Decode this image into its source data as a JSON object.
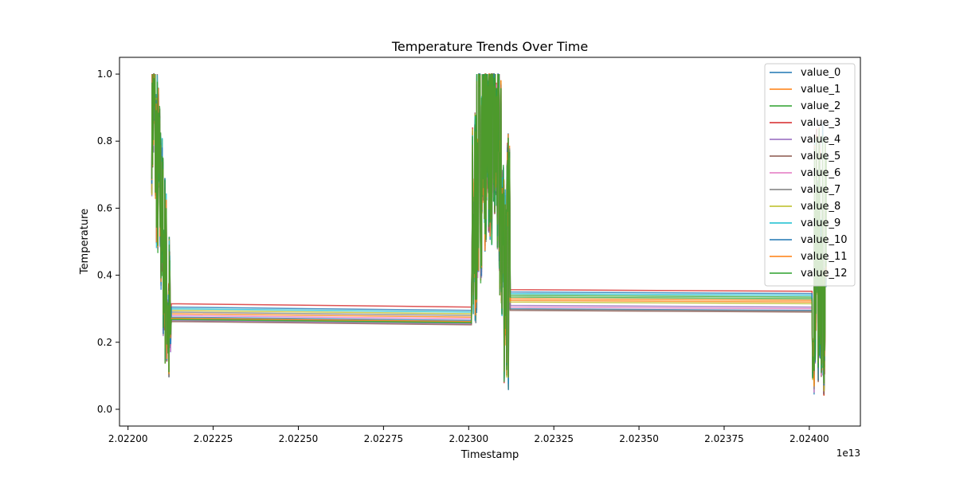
{
  "chart_data": {
    "type": "line",
    "title": "Temperature Trends Over Time",
    "xlabel": "Timestamp",
    "ylabel": "Temperature",
    "x_offset_label": "1e13",
    "xlim": [
      2.022175,
      2.02243
    ],
    "ylim": [
      -0.05,
      1.05
    ],
    "x_ticks": [
      2.0222,
      2.02225,
      2.0223,
      2.02235,
      2.0224
    ],
    "x_tick_labels": [
      "2.02200",
      "2.02225",
      "2.02250",
      "2.02275",
      "2.02300",
      "2.02325",
      "2.02350",
      "2.02375",
      "2.02400"
    ],
    "x_tick_values": [
      2.022,
      2.02225,
      2.0225,
      2.02275,
      2.023,
      2.02325,
      2.0235,
      2.02375,
      2.024
    ],
    "y_tick_values": [
      0.0,
      0.2,
      0.4,
      0.6,
      0.8,
      1.0
    ],
    "y_tick_labels": [
      "0.0",
      "0.2",
      "0.4",
      "0.6",
      "0.8",
      "1.0"
    ],
    "x_range_units": [
      2.021975,
      2.02415
    ],
    "grid": false,
    "legend_position": "top-right",
    "segments": [
      {
        "x_start": 2.02207,
        "x_end": 2.022125
      },
      {
        "x_start": 2.02301,
        "x_end": 2.02312
      },
      {
        "x_start": 2.02401,
        "x_end": 2.02405
      }
    ],
    "plateau_values": {
      "gap1": [
        0.275,
        0.285,
        0.27,
        0.315,
        0.265,
        0.262,
        0.28,
        0.29,
        0.295,
        0.3,
        0.305,
        0.272,
        0.268
      ],
      "gap2": [
        0.3,
        0.33,
        0.34,
        0.357,
        0.31,
        0.295,
        0.305,
        0.298,
        0.32,
        0.345,
        0.35,
        0.325,
        0.335
      ]
    },
    "series": [
      {
        "name": "value_0",
        "color": "#1f77b4"
      },
      {
        "name": "value_1",
        "color": "#ff7f0e"
      },
      {
        "name": "value_2",
        "color": "#2ca02c"
      },
      {
        "name": "value_3",
        "color": "#d62728"
      },
      {
        "name": "value_4",
        "color": "#9467bd"
      },
      {
        "name": "value_5",
        "color": "#8c564b"
      },
      {
        "name": "value_6",
        "color": "#e377c2"
      },
      {
        "name": "value_7",
        "color": "#7f7f7f"
      },
      {
        "name": "value_8",
        "color": "#bcbd22"
      },
      {
        "name": "value_9",
        "color": "#17becf"
      },
      {
        "name": "value_10",
        "color": "#1f77b4"
      },
      {
        "name": "value_11",
        "color": "#ff7f0e"
      },
      {
        "name": "value_12",
        "color": "#2ca02c"
      }
    ]
  }
}
